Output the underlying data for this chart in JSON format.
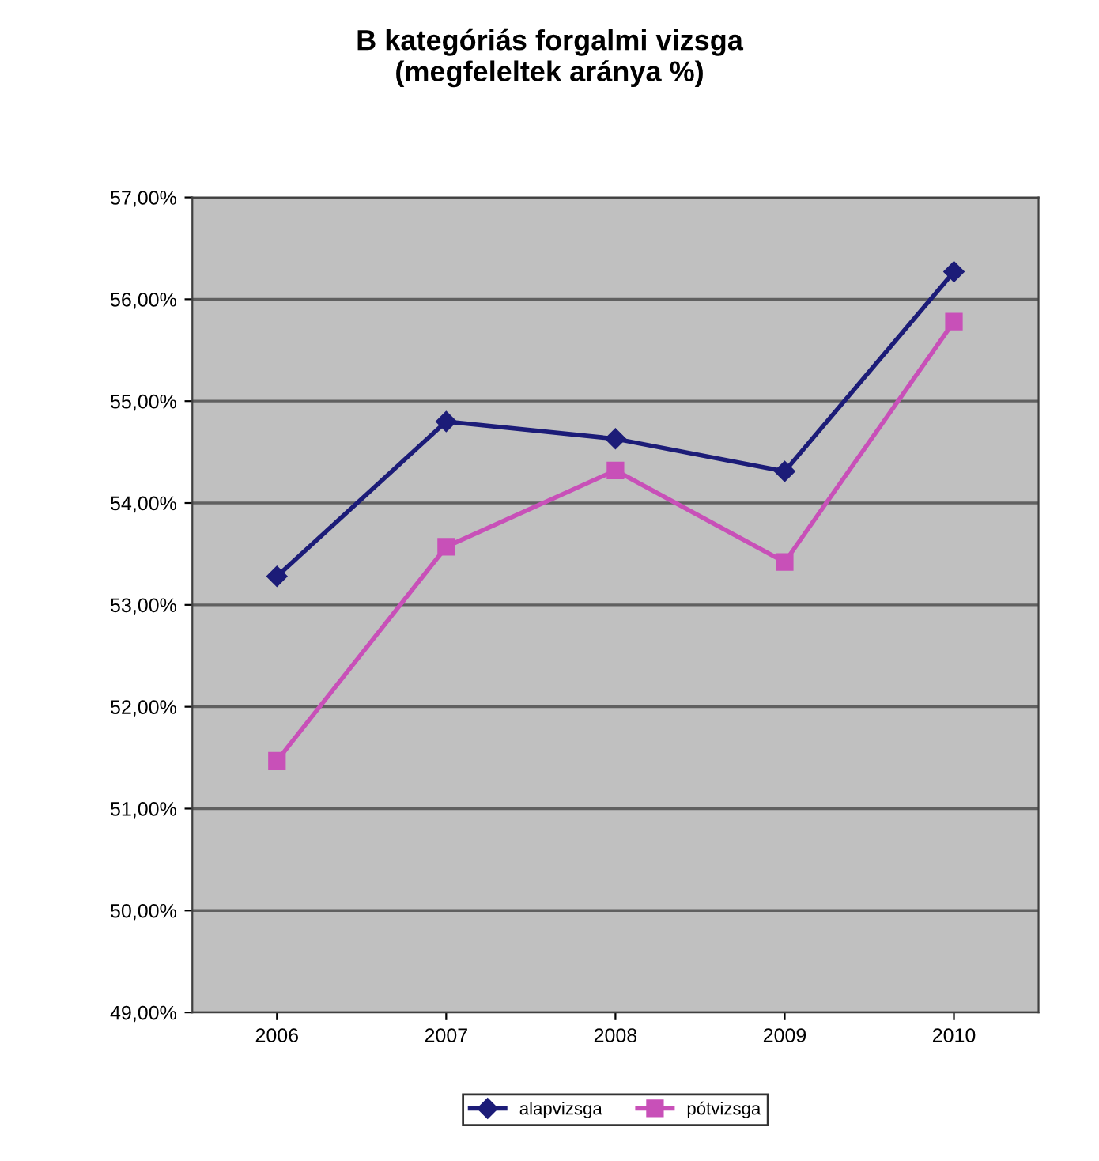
{
  "chart_data": {
    "type": "line",
    "title": "B kategóriás forgalmi vizsga\n(megfeleltek aránya %)",
    "categories": [
      "2006",
      "2007",
      "2008",
      "2009",
      "2010"
    ],
    "series": [
      {
        "name": "alapvizsga",
        "color": "#1c1c78",
        "marker": "diamond",
        "values": [
          53.28,
          54.8,
          54.63,
          54.31,
          56.27
        ]
      },
      {
        "name": "pótvizsga",
        "color": "#c850b8",
        "marker": "square",
        "values": [
          51.47,
          53.57,
          54.32,
          53.42,
          55.78
        ]
      }
    ],
    "ylim": [
      49,
      57
    ],
    "yticks": [
      {
        "value": 49,
        "label": "49,00%"
      },
      {
        "value": 50,
        "label": "50,00%"
      },
      {
        "value": 51,
        "label": "51,00%"
      },
      {
        "value": 52,
        "label": "52,00%"
      },
      {
        "value": 53,
        "label": "53,00%"
      },
      {
        "value": 54,
        "label": "54,00%"
      },
      {
        "value": 55,
        "label": "55,00%"
      },
      {
        "value": 56,
        "label": "56,00%"
      },
      {
        "value": 57,
        "label": "57,00%"
      }
    ],
    "grid": "y",
    "legend": "bottom",
    "line_style": "solid"
  }
}
